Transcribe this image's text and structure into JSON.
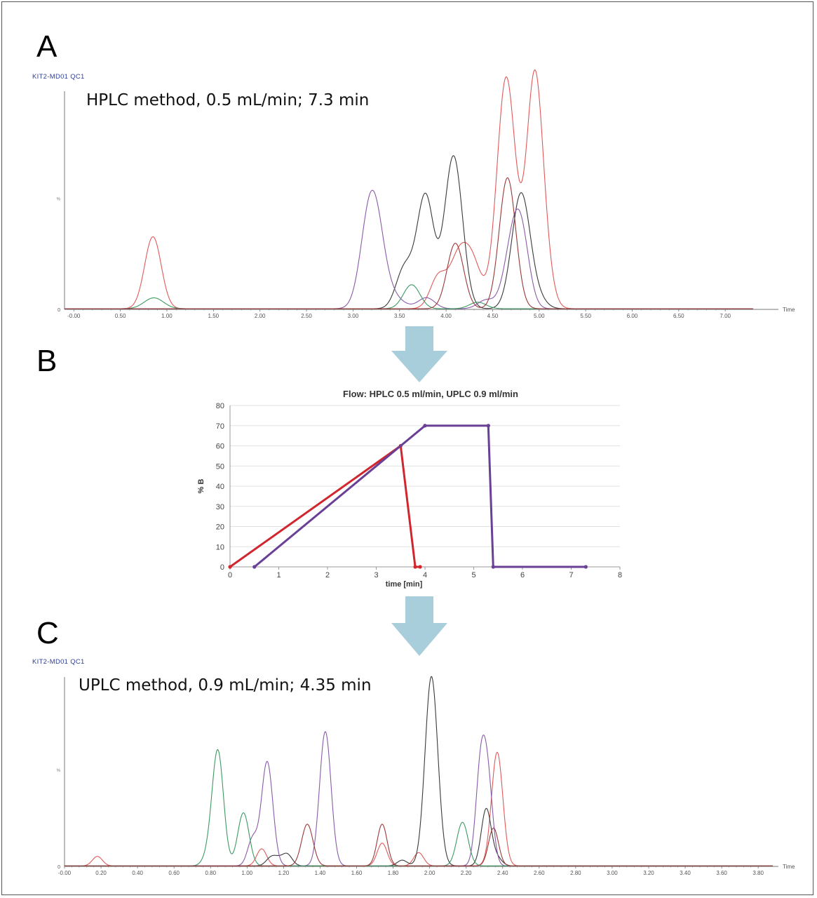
{
  "panels": {
    "a": {
      "letter": "A",
      "sample_id": "KIT2-MD01 QC1",
      "method_label": "HPLC method, 0.5 mL/min; 7.3 min"
    },
    "b": {
      "letter": "B"
    },
    "c": {
      "letter": "C",
      "sample_id": "KIT2-MD01 QC1",
      "method_label": "UPLC method, 0.9 mL/min; 4.35 min"
    }
  },
  "colors": {
    "red": "#e05a5a",
    "black": "#3a3a3a",
    "purple": "#8a5aa8",
    "green": "#3c9a62",
    "darkred": "#9a3838",
    "gradient_red": "#d0262e",
    "gradient_purple": "#6a3f96",
    "arrow": "#a8cedc",
    "axis": "#777777",
    "sample_id": "#2c3e9a"
  },
  "chart_data": [
    {
      "id": "chromatogram_hplc",
      "type": "line",
      "title": "",
      "xlabel": "Time",
      "ylabel": "%",
      "xlim": [
        -0.1,
        7.3
      ],
      "ylim": [
        0,
        100
      ],
      "x_ticks": [
        "-0.00",
        "0.50",
        "1.00",
        "1.50",
        "2.00",
        "2.50",
        "3.00",
        "3.50",
        "4.00",
        "4.50",
        "5.00",
        "5.50",
        "6.00",
        "6.50",
        "7.00"
      ],
      "y_ticks": [
        "0",
        "%"
      ],
      "series": [
        {
          "color": "red",
          "peaks": [
            [
              0.85,
              33,
              0.012
            ],
            [
              3.92,
              15,
              0.012
            ],
            [
              4.12,
              18,
              0.012
            ],
            [
              4.27,
              23,
              0.014
            ],
            [
              4.57,
              8,
              0.012
            ],
            [
              4.65,
              100,
              0.013
            ],
            [
              4.96,
              79,
              0.014
            ],
            [
              4.95,
              30,
              0.01
            ]
          ]
        },
        {
          "color": "black",
          "peaks": [
            [
              3.55,
              18,
              0.012
            ],
            [
              3.66,
              3,
              0.01
            ],
            [
              3.78,
              51,
              0.012
            ],
            [
              4.08,
              70,
              0.013
            ],
            [
              4.73,
              4,
              0.012
            ],
            [
              4.81,
              50,
              0.013
            ],
            [
              4.99,
              4,
              0.012
            ]
          ]
        },
        {
          "color": "purple",
          "peaks": [
            [
              3.17,
              33,
              0.013
            ],
            [
              3.22,
              6,
              0.015
            ],
            [
              3.26,
              16,
              0.012
            ],
            [
              3.32,
              5,
              0.018
            ],
            [
              3.42,
              3,
              0.018
            ],
            [
              3.79,
              5,
              0.012
            ],
            [
              4.43,
              4,
              0.012
            ],
            [
              4.69,
              19,
              0.012
            ],
            [
              4.8,
              35,
              0.012
            ]
          ]
        },
        {
          "color": "green",
          "peaks": [
            [
              0.86,
              5,
              0.014
            ],
            [
              3.63,
              11,
              0.012
            ],
            [
              4.34,
              3,
              0.012
            ]
          ]
        },
        {
          "color": "darkred",
          "peaks": [
            [
              4.1,
              30,
              0.012
            ],
            [
              4.66,
              60,
              0.012
            ]
          ]
        }
      ]
    },
    {
      "id": "gradient_profile",
      "type": "line",
      "title": "Flow: HPLC 0.5 ml/min, UPLC 0.9 ml/min",
      "xlabel": "time [min]",
      "ylabel": "% B",
      "xlim": [
        0,
        8
      ],
      "ylim": [
        0,
        80
      ],
      "x_ticks": [
        "0",
        "1",
        "2",
        "3",
        "4",
        "5",
        "6",
        "7",
        "8"
      ],
      "y_ticks": [
        "0",
        "10",
        "20",
        "30",
        "40",
        "50",
        "60",
        "70",
        "80"
      ],
      "grid": true,
      "series": [
        {
          "color": "gradient_red",
          "x": [
            0,
            3.5,
            3.8,
            3.9
          ],
          "y": [
            0,
            60,
            0,
            0
          ]
        },
        {
          "color": "gradient_purple",
          "x": [
            0.5,
            4.0,
            5.3,
            5.4,
            7.3
          ],
          "y": [
            0,
            70,
            70,
            0,
            0
          ]
        }
      ]
    },
    {
      "id": "chromatogram_uplc",
      "type": "line",
      "title": "",
      "xlabel": "Time",
      "ylabel": "%",
      "xlim": [
        0,
        3.88
      ],
      "ylim": [
        0,
        100
      ],
      "x_ticks": [
        "-0.00",
        "0.20",
        "0.40",
        "0.60",
        "0.80",
        "1.00",
        "1.20",
        "1.40",
        "1.60",
        "1.80",
        "2.00",
        "2.20",
        "2.40",
        "2.60",
        "2.80",
        "3.00",
        "3.20",
        "3.40",
        "3.60",
        "3.80"
      ],
      "y_ticks": [
        "0",
        "%"
      ],
      "series": [
        {
          "color": "red",
          "peaks": [
            [
              0.18,
              5,
              0.007
            ],
            [
              1.08,
              9,
              0.007
            ],
            [
              1.74,
              12,
              0.007
            ],
            [
              1.94,
              7,
              0.007
            ],
            [
              2.37,
              60,
              0.008
            ]
          ]
        },
        {
          "color": "black",
          "peaks": [
            [
              1.13,
              4,
              0.007
            ],
            [
              1.17,
              3,
              0.007
            ],
            [
              1.22,
              6,
              0.007
            ],
            [
              1.85,
              3,
              0.007
            ],
            [
              2.01,
              100,
              0.009
            ],
            [
              2.31,
              30,
              0.007
            ],
            [
              2.37,
              4,
              0.007
            ]
          ]
        },
        {
          "color": "purple",
          "peaks": [
            [
              1.03,
              14,
              0.007
            ],
            [
              1.11,
              55,
              0.008
            ],
            [
              1.43,
              67,
              0.008
            ],
            [
              1.41,
              5,
              0.007
            ],
            [
              2.28,
              50,
              0.007
            ],
            [
              2.32,
              40,
              0.007
            ]
          ]
        },
        {
          "color": "green",
          "peaks": [
            [
              0.79,
              5,
              0.008
            ],
            [
              0.84,
              60,
              0.008
            ],
            [
              0.98,
              28,
              0.008
            ],
            [
              2.18,
              23,
              0.008
            ]
          ]
        },
        {
          "color": "darkred",
          "peaks": [
            [
              1.33,
              22,
              0.008
            ],
            [
              1.74,
              22,
              0.007
            ],
            [
              2.35,
              20,
              0.007
            ]
          ]
        }
      ]
    }
  ]
}
